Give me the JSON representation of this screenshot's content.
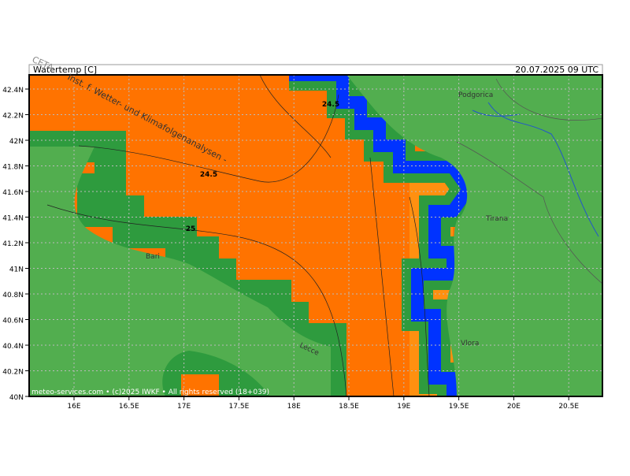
{
  "header": {
    "title": "Watertemp [C]",
    "datetime": "20.07.2025 09 UTC",
    "logo": "CETA"
  },
  "axes": {
    "y_labels": [
      "42.4N",
      "42.2N",
      "42N",
      "41.8N",
      "41.6N",
      "41.4N",
      "41.2N",
      "41N",
      "40.8N",
      "40.6N",
      "40.4N",
      "40.2N",
      "40N"
    ],
    "x_labels": [
      "16E",
      "16.5E",
      "17E",
      "17.5E",
      "18E",
      "18.5E",
      "19E",
      "19.5E",
      "20E",
      "20.5E"
    ]
  },
  "map": {
    "contour_labels": [
      "24.5",
      "24.5",
      "25"
    ],
    "places": [
      "Podgorica",
      "Tirana",
      "Bari",
      "Vlora",
      "Lecce"
    ],
    "watermark": "Inst. f. Wetter- und Klimafolgenanalysen -"
  },
  "footer": "meteo-services.com • (c)2025 IWKF • All rights reserved (18+039)"
}
